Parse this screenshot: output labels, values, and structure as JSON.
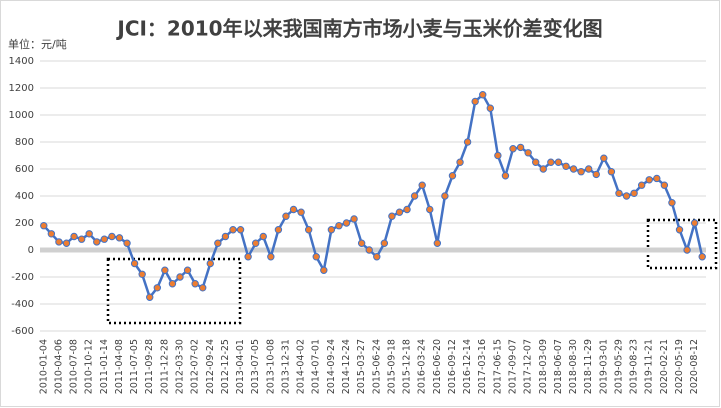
{
  "chart_data": {
    "type": "line",
    "title": "JCI：2010年以来我国南方市场小麦与玉米价差变化图",
    "y_label": "单位：元/吨",
    "categories": [
      "2010-01-04",
      null,
      "2010-04-06",
      null,
      "2010-07-08",
      null,
      "2010-10-12",
      null,
      "2011-01-14",
      null,
      "2011-04-08",
      null,
      "2011-07-05",
      null,
      "2011-09-28",
      null,
      "2011-12-28",
      null,
      "2012-03-30",
      null,
      "2012-07-02",
      null,
      "2012-09-24",
      null,
      "2012-12-25",
      null,
      "2013-04-01",
      null,
      "2013-07-05",
      null,
      "2013-10-08",
      null,
      "2013-12-31",
      null,
      "2014-04-02",
      null,
      "2014-07-01",
      null,
      "2014-09-24",
      null,
      "2014-12-24",
      null,
      "2015-03-27",
      null,
      "2015-06-24",
      null,
      "2015-09-18",
      null,
      "2015-12-18",
      null,
      "2016-03-24",
      null,
      "2016-06-20",
      null,
      "2016-09-12",
      null,
      "2016-12-14",
      null,
      "2017-03-16",
      null,
      "2017-06-15",
      null,
      "2017-09-07",
      null,
      "2017-12-07",
      null,
      "2018-03-09",
      null,
      "2018-06-07",
      null,
      "2018-08-30",
      null,
      "2018-11-29",
      null,
      "2019-03-01",
      null,
      "2019-05-29",
      null,
      "2019-08-23",
      null,
      "2019-11-21",
      null,
      "2020-02-21",
      null,
      "2020-05-19",
      null,
      "2020-08-12",
      null
    ],
    "series": [
      {
        "color": "#4472c4",
        "marker_color": "#ed7d31",
        "values": [
          180,
          120,
          60,
          50,
          100,
          80,
          120,
          60,
          80,
          100,
          90,
          50,
          -100,
          -180,
          -350,
          -280,
          -150,
          -250,
          -200,
          -150,
          -250,
          -280,
          -100,
          50,
          100,
          150,
          150,
          -50,
          50,
          100,
          -50,
          150,
          250,
          300,
          280,
          150,
          -50,
          -150,
          150,
          180,
          200,
          230,
          50,
          0,
          -50,
          50,
          250,
          280,
          300,
          400,
          480,
          300,
          50,
          400,
          550,
          650,
          800,
          1100,
          1150,
          1050,
          700,
          550,
          750,
          760,
          720,
          650,
          600,
          650,
          650,
          620,
          600,
          580,
          600,
          560,
          680,
          580,
          420,
          400,
          420,
          480,
          520,
          530,
          480,
          350,
          150,
          0,
          200,
          -50
        ]
      }
    ],
    "ylim": [
      -600,
      1400
    ],
    "yticks": [
      -600,
      -400,
      -200,
      0,
      200,
      400,
      600,
      800,
      1000,
      1200,
      1400
    ],
    "grid": true
  }
}
